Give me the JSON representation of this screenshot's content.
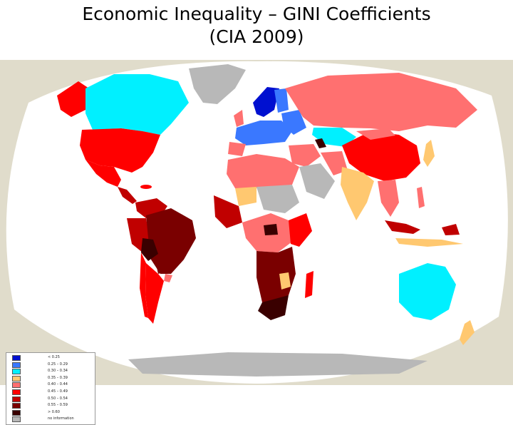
{
  "title_line1": "Economic Inequality – GINI Coefficients",
  "title_line2": "(CIA 2009)",
  "colors": {
    "lt_025": "#0010d0",
    "c025_029": "#3a78ff",
    "c030_034": "#00f0ff",
    "c035_039": "#ffc870",
    "c040_044": "#ff7070",
    "c045_049": "#ff0000",
    "c050_054": "#c00000",
    "c055_059": "#7a0000",
    "gt_060": "#3a0000",
    "no_info": "#b8b8b8",
    "ocean": "#ffffff",
    "background": "#e0dccb"
  },
  "legend": [
    {
      "label": "< 0.25",
      "color": "#0010d0"
    },
    {
      "label": "0.25 – 0.29",
      "color": "#3a78ff"
    },
    {
      "label": "0.30 – 0.34",
      "color": "#00f0ff"
    },
    {
      "label": "0.35 – 0.39",
      "color": "#ffc870"
    },
    {
      "label": "0.40 – 0.44",
      "color": "#ff7070"
    },
    {
      "label": "0.45 – 0.49",
      "color": "#ff0000"
    },
    {
      "label": "0.50 – 0.54",
      "color": "#c00000"
    },
    {
      "label": "0.55 – 0.59",
      "color": "#7a0000"
    },
    {
      "label": "> 0.60",
      "color": "#3a0000"
    },
    {
      "label": "no information",
      "color": "#b8b8b8"
    }
  ]
}
